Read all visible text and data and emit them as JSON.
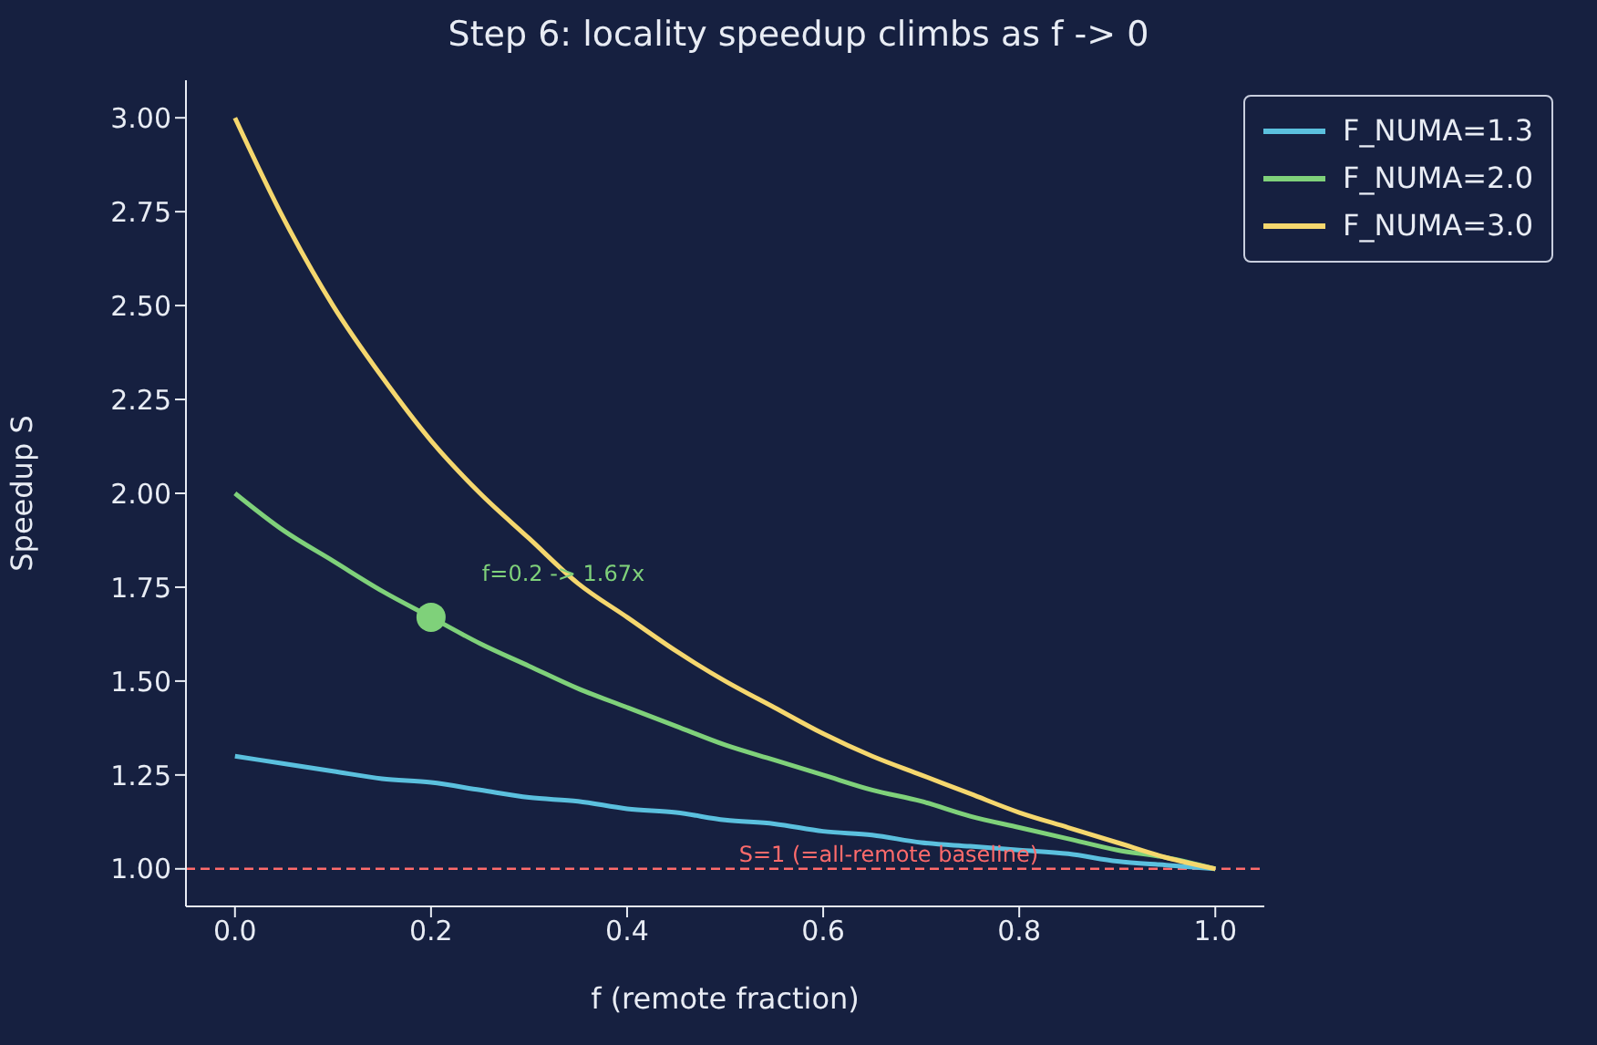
{
  "chart_data": {
    "type": "line",
    "title": "Step 6: locality speedup climbs as f -> 0",
    "xlabel": "f  (remote fraction)",
    "ylabel": "Speedup  S",
    "x": [
      0,
      0.05,
      0.1,
      0.15,
      0.2,
      0.25,
      0.3,
      0.35,
      0.4,
      0.45,
      0.5,
      0.55,
      0.6,
      0.65,
      0.7,
      0.75,
      0.8,
      0.85,
      0.9,
      0.95,
      1
    ],
    "series": [
      {
        "name": "F_NUMA=1.3",
        "color": "#5bc0de",
        "values": [
          1.3,
          1.28,
          1.26,
          1.24,
          1.23,
          1.21,
          1.19,
          1.18,
          1.16,
          1.15,
          1.13,
          1.12,
          1.1,
          1.09,
          1.07,
          1.06,
          1.05,
          1.04,
          1.02,
          1.01,
          1.0
        ]
      },
      {
        "name": "F_NUMA=2.0",
        "color": "#7fd17a",
        "values": [
          2.0,
          1.9,
          1.82,
          1.74,
          1.67,
          1.6,
          1.54,
          1.48,
          1.43,
          1.38,
          1.33,
          1.29,
          1.25,
          1.21,
          1.18,
          1.14,
          1.11,
          1.08,
          1.05,
          1.03,
          1.0
        ]
      },
      {
        "name": "F_NUMA=3.0",
        "color": "#f5d76e",
        "values": [
          3.0,
          2.73,
          2.5,
          2.31,
          2.14,
          2.0,
          1.88,
          1.76,
          1.67,
          1.58,
          1.5,
          1.43,
          1.36,
          1.3,
          1.25,
          1.2,
          1.15,
          1.11,
          1.07,
          1.03,
          1.0
        ]
      },
      {
        "type": "scatter",
        "color": "#7fd17a",
        "marker": "circle",
        "x": [
          0.2
        ],
        "values": [
          1.67
        ]
      }
    ],
    "annotations": [
      {
        "text": "f=0.2 -> 1.67x",
        "x": 0.2,
        "y": 1.67
      }
    ],
    "ref_lines": [
      {
        "axis": "y",
        "value": 1,
        "label": "S=1 (=all-remote baseline)",
        "color": "#ff6b6b",
        "line_style": "dashed"
      }
    ],
    "xlim": [
      -0.05,
      1.05
    ],
    "ylim": [
      0.9,
      3.1
    ],
    "xticks": [
      {
        "value": 0,
        "label": "0.0"
      },
      {
        "value": 0.2,
        "label": "0.2"
      },
      {
        "value": 0.4,
        "label": "0.4"
      },
      {
        "value": 0.6,
        "label": "0.6"
      },
      {
        "value": 0.8,
        "label": "0.8"
      },
      {
        "value": 1,
        "label": "1.0"
      }
    ],
    "yticks": [
      {
        "value": 1,
        "label": "1.00"
      },
      {
        "value": 1.25,
        "label": "1.25"
      },
      {
        "value": 1.5,
        "label": "1.50"
      },
      {
        "value": 1.75,
        "label": "1.75"
      },
      {
        "value": 2,
        "label": "2.00"
      },
      {
        "value": 2.25,
        "label": "2.25"
      },
      {
        "value": 2.5,
        "label": "2.50"
      },
      {
        "value": 2.75,
        "label": "2.75"
      },
      {
        "value": 3,
        "label": "3.00"
      }
    ],
    "legend": "top right",
    "grid": false,
    "line_style": "solid"
  }
}
